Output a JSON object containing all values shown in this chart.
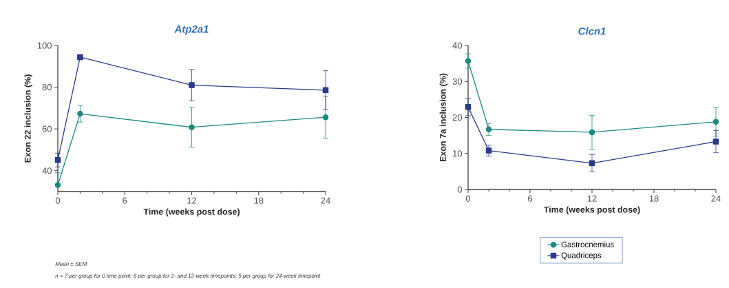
{
  "chart_data": [
    {
      "type": "line",
      "title": "Atp2a1",
      "xlabel": "Time (weeks post dose)",
      "ylabel": "Exon 22 inclusion (%)",
      "x": [
        0,
        2,
        12,
        24
      ],
      "xlim": [
        0,
        24
      ],
      "xticks": [
        0,
        6,
        12,
        18,
        24
      ],
      "ylim": [
        30,
        100
      ],
      "yticks": [
        40,
        60,
        80,
        100
      ],
      "grid": false,
      "legend": false,
      "series": [
        {
          "color": "#1a8a80",
          "marker": "circle",
          "values": [
            33.1,
            67.3,
            60.8,
            65.6
          ],
          "errors": [
            [
              33.1,
              39
            ],
            4,
            9.5,
            10
          ]
        },
        {
          "color": "#2b3a8a",
          "marker": "square",
          "values": [
            45.1,
            94.4,
            81,
            78.6
          ],
          "errors": [
            3.3,
            1,
            7.5,
            9.3
          ]
        }
      ],
      "annotations": [
        "*Mean ± SEM*",
        "*n = 7 per group for 0 time point; 8 per group for 2- and 12-week timepoints; 5 per group for 24-week timepoint*"
      ]
    },
    {
      "type": "line",
      "title": "Clcn1",
      "xlabel": "Time (weeks post dose)",
      "ylabel": "Exon 7a inclusion (%)",
      "x": [
        0,
        2,
        12,
        24
      ],
      "xlim": [
        0,
        24
      ],
      "xticks": [
        0,
        6,
        12,
        18,
        24
      ],
      "ylim": [
        0,
        40
      ],
      "yticks": [
        0,
        10,
        20,
        30,
        40
      ],
      "grid": false,
      "legend": "bottom",
      "series": [
        {
          "name": "Gastrocnemius",
          "color": "#1a8a80",
          "marker": "circle",
          "values": [
            35.7,
            16.7,
            15.9,
            18.8
          ],
          "errors": [
            2,
            1.7,
            4.7,
            4
          ]
        },
        {
          "name": "Quadriceps",
          "color": "#2b3a8a",
          "marker": "square",
          "values": [
            22.9,
            10.8,
            7.3,
            13.3
          ],
          "errors": [
            2.4,
            1.5,
            2.4,
            3.1
          ]
        }
      ]
    }
  ]
}
